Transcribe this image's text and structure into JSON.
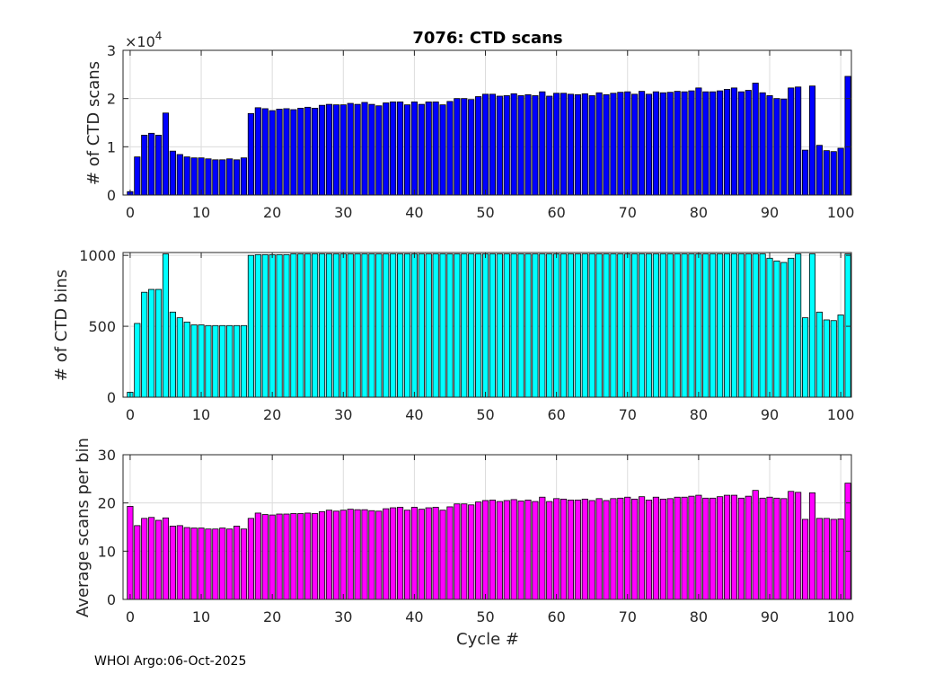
{
  "figure_title": "7076: CTD scans",
  "footer": "WHOI Argo:06-Oct-2025",
  "colors": {
    "scans": "#0000ff",
    "bins": "#00ffff",
    "avg": "#ff00ff",
    "edge": "#000000",
    "axis": "#262626",
    "grid": "#dcdcdc"
  },
  "chart_data": [
    {
      "type": "bar",
      "title": "7076: CTD scans",
      "xlabel": "",
      "ylabel": "# of CTD scans",
      "exponent_label": "×10",
      "exponent": "4",
      "x": [
        0,
        1,
        2,
        3,
        4,
        5,
        6,
        7,
        8,
        9,
        10,
        11,
        12,
        13,
        14,
        15,
        16,
        17,
        18,
        19,
        20,
        21,
        22,
        23,
        24,
        25,
        26,
        27,
        28,
        29,
        30,
        31,
        32,
        33,
        34,
        35,
        36,
        37,
        38,
        39,
        40,
        41,
        42,
        43,
        44,
        45,
        46,
        47,
        48,
        49,
        50,
        51,
        52,
        53,
        54,
        55,
        56,
        57,
        58,
        59,
        60,
        61,
        62,
        63,
        64,
        65,
        66,
        67,
        68,
        69,
        70,
        71,
        72,
        73,
        74,
        75,
        76,
        77,
        78,
        79,
        80,
        81,
        82,
        83,
        84,
        85,
        86,
        87,
        88,
        89,
        90,
        91,
        92,
        93,
        94,
        95,
        96,
        97,
        98,
        99,
        100,
        101
      ],
      "values": [
        700,
        7900,
        12400,
        12800,
        12400,
        17000,
        9100,
        8400,
        7900,
        7700,
        7700,
        7500,
        7300,
        7300,
        7500,
        7300,
        7700,
        16900,
        18100,
        17900,
        17500,
        17800,
        17900,
        17700,
        18000,
        18200,
        18000,
        18600,
        18800,
        18700,
        18700,
        19000,
        18800,
        19200,
        18800,
        18500,
        19100,
        19300,
        19300,
        18700,
        19300,
        18800,
        19300,
        19300,
        18700,
        19400,
        20000,
        20000,
        19800,
        20400,
        20900,
        20900,
        20500,
        20600,
        21000,
        20600,
        20800,
        20600,
        21400,
        20500,
        21100,
        21100,
        20900,
        20800,
        21000,
        20600,
        21200,
        20800,
        21100,
        21300,
        21400,
        20900,
        21500,
        20900,
        21400,
        21200,
        21300,
        21500,
        21400,
        21600,
        22200,
        21400,
        21400,
        21600,
        21900,
        22200,
        21400,
        21700,
        23200,
        21200,
        20600,
        20000,
        19900,
        22200,
        22400,
        9300,
        22600,
        10300,
        9200,
        9000,
        9700,
        24600
      ],
      "ylim": [
        0,
        30000
      ],
      "yticks": [
        0,
        10000,
        20000,
        30000
      ],
      "ytick_labels": [
        "0",
        "1",
        "2",
        "3"
      ],
      "xlim": [
        -1,
        101.5
      ],
      "xticks": [
        0,
        10,
        20,
        30,
        40,
        50,
        60,
        70,
        80,
        90,
        100
      ],
      "xtick_labels": [
        "0",
        "10",
        "20",
        "30",
        "40",
        "50",
        "60",
        "70",
        "80",
        "90",
        "100"
      ]
    },
    {
      "type": "bar",
      "title": "",
      "xlabel": "",
      "ylabel": "# of CTD bins",
      "x": [
        0,
        1,
        2,
        3,
        4,
        5,
        6,
        7,
        8,
        9,
        10,
        11,
        12,
        13,
        14,
        15,
        16,
        17,
        18,
        19,
        20,
        21,
        22,
        23,
        24,
        25,
        26,
        27,
        28,
        29,
        30,
        31,
        32,
        33,
        34,
        35,
        36,
        37,
        38,
        39,
        40,
        41,
        42,
        43,
        44,
        45,
        46,
        47,
        48,
        49,
        50,
        51,
        52,
        53,
        54,
        55,
        56,
        57,
        58,
        59,
        60,
        61,
        62,
        63,
        64,
        65,
        66,
        67,
        68,
        69,
        70,
        71,
        72,
        73,
        74,
        75,
        76,
        77,
        78,
        79,
        80,
        81,
        82,
        83,
        84,
        85,
        86,
        87,
        88,
        89,
        90,
        91,
        92,
        93,
        94,
        95,
        96,
        97,
        98,
        99,
        100,
        101
      ],
      "values": [
        35,
        520,
        740,
        760,
        760,
        1010,
        600,
        560,
        530,
        510,
        510,
        505,
        505,
        505,
        505,
        505,
        505,
        1000,
        1005,
        1005,
        1005,
        1005,
        1005,
        1010,
        1010,
        1010,
        1010,
        1010,
        1010,
        1010,
        1010,
        1010,
        1010,
        1010,
        1010,
        1010,
        1010,
        1010,
        1010,
        1010,
        1010,
        1010,
        1010,
        1010,
        1010,
        1010,
        1010,
        1010,
        1010,
        1010,
        1010,
        1010,
        1010,
        1010,
        1010,
        1010,
        1010,
        1010,
        1010,
        1010,
        1010,
        1010,
        1010,
        1010,
        1010,
        1010,
        1010,
        1010,
        1010,
        1010,
        1010,
        1010,
        1010,
        1010,
        1010,
        1010,
        1010,
        1010,
        1010,
        1010,
        1010,
        1010,
        1010,
        1010,
        1010,
        1010,
        1010,
        1010,
        1010,
        1010,
        980,
        960,
        950,
        980,
        1010,
        560,
        1010,
        600,
        545,
        540,
        580,
        1010
      ],
      "ylim": [
        0,
        1020
      ],
      "yticks": [
        0,
        500,
        1000
      ],
      "ytick_labels": [
        "0",
        "500",
        "1000"
      ],
      "xlim": [
        -1,
        101.5
      ],
      "xticks": [
        0,
        10,
        20,
        30,
        40,
        50,
        60,
        70,
        80,
        90,
        100
      ],
      "xtick_labels": [
        "0",
        "10",
        "20",
        "30",
        "40",
        "50",
        "60",
        "70",
        "80",
        "90",
        "100"
      ]
    },
    {
      "type": "bar",
      "title": "",
      "xlabel": "Cycle #",
      "ylabel": "Average scans per bin",
      "x": [
        0,
        1,
        2,
        3,
        4,
        5,
        6,
        7,
        8,
        9,
        10,
        11,
        12,
        13,
        14,
        15,
        16,
        17,
        18,
        19,
        20,
        21,
        22,
        23,
        24,
        25,
        26,
        27,
        28,
        29,
        30,
        31,
        32,
        33,
        34,
        35,
        36,
        37,
        38,
        39,
        40,
        41,
        42,
        43,
        44,
        45,
        46,
        47,
        48,
        49,
        50,
        51,
        52,
        53,
        54,
        55,
        56,
        57,
        58,
        59,
        60,
        61,
        62,
        63,
        64,
        65,
        66,
        67,
        68,
        69,
        70,
        71,
        72,
        73,
        74,
        75,
        76,
        77,
        78,
        79,
        80,
        81,
        82,
        83,
        84,
        85,
        86,
        87,
        88,
        89,
        90,
        91,
        92,
        93,
        94,
        95,
        96,
        97,
        98,
        99,
        100,
        101
      ],
      "values": [
        19.3,
        15.3,
        16.8,
        17.0,
        16.4,
        16.9,
        15.2,
        15.3,
        14.9,
        14.8,
        14.8,
        14.6,
        14.6,
        14.8,
        14.6,
        15.2,
        14.6,
        16.8,
        17.9,
        17.6,
        17.5,
        17.7,
        17.7,
        17.8,
        17.8,
        17.9,
        17.8,
        18.2,
        18.5,
        18.3,
        18.5,
        18.7,
        18.6,
        18.6,
        18.4,
        18.3,
        18.8,
        19.0,
        19.1,
        18.5,
        19.1,
        18.7,
        19.0,
        19.1,
        18.5,
        19.2,
        19.8,
        19.8,
        19.6,
        20.2,
        20.5,
        20.6,
        20.3,
        20.5,
        20.7,
        20.4,
        20.6,
        20.3,
        21.2,
        20.3,
        20.9,
        20.8,
        20.6,
        20.6,
        20.8,
        20.5,
        20.9,
        20.5,
        20.9,
        21.0,
        21.2,
        20.8,
        21.3,
        20.6,
        21.2,
        20.8,
        20.9,
        21.2,
        21.2,
        21.4,
        21.6,
        21.0,
        21.0,
        21.3,
        21.6,
        21.6,
        21.0,
        21.4,
        22.6,
        21.0,
        21.2,
        21.0,
        20.9,
        22.4,
        22.2,
        16.6,
        22.1,
        16.8,
        16.8,
        16.6,
        16.7,
        24.1
      ],
      "ylim": [
        0,
        30
      ],
      "yticks": [
        0,
        10,
        20,
        30
      ],
      "ytick_labels": [
        "0",
        "10",
        "20",
        "30"
      ],
      "xlim": [
        -1,
        101.5
      ],
      "xticks": [
        0,
        10,
        20,
        30,
        40,
        50,
        60,
        70,
        80,
        90,
        100
      ],
      "xtick_labels": [
        "0",
        "10",
        "20",
        "30",
        "40",
        "50",
        "60",
        "70",
        "80",
        "90",
        "100"
      ]
    }
  ]
}
